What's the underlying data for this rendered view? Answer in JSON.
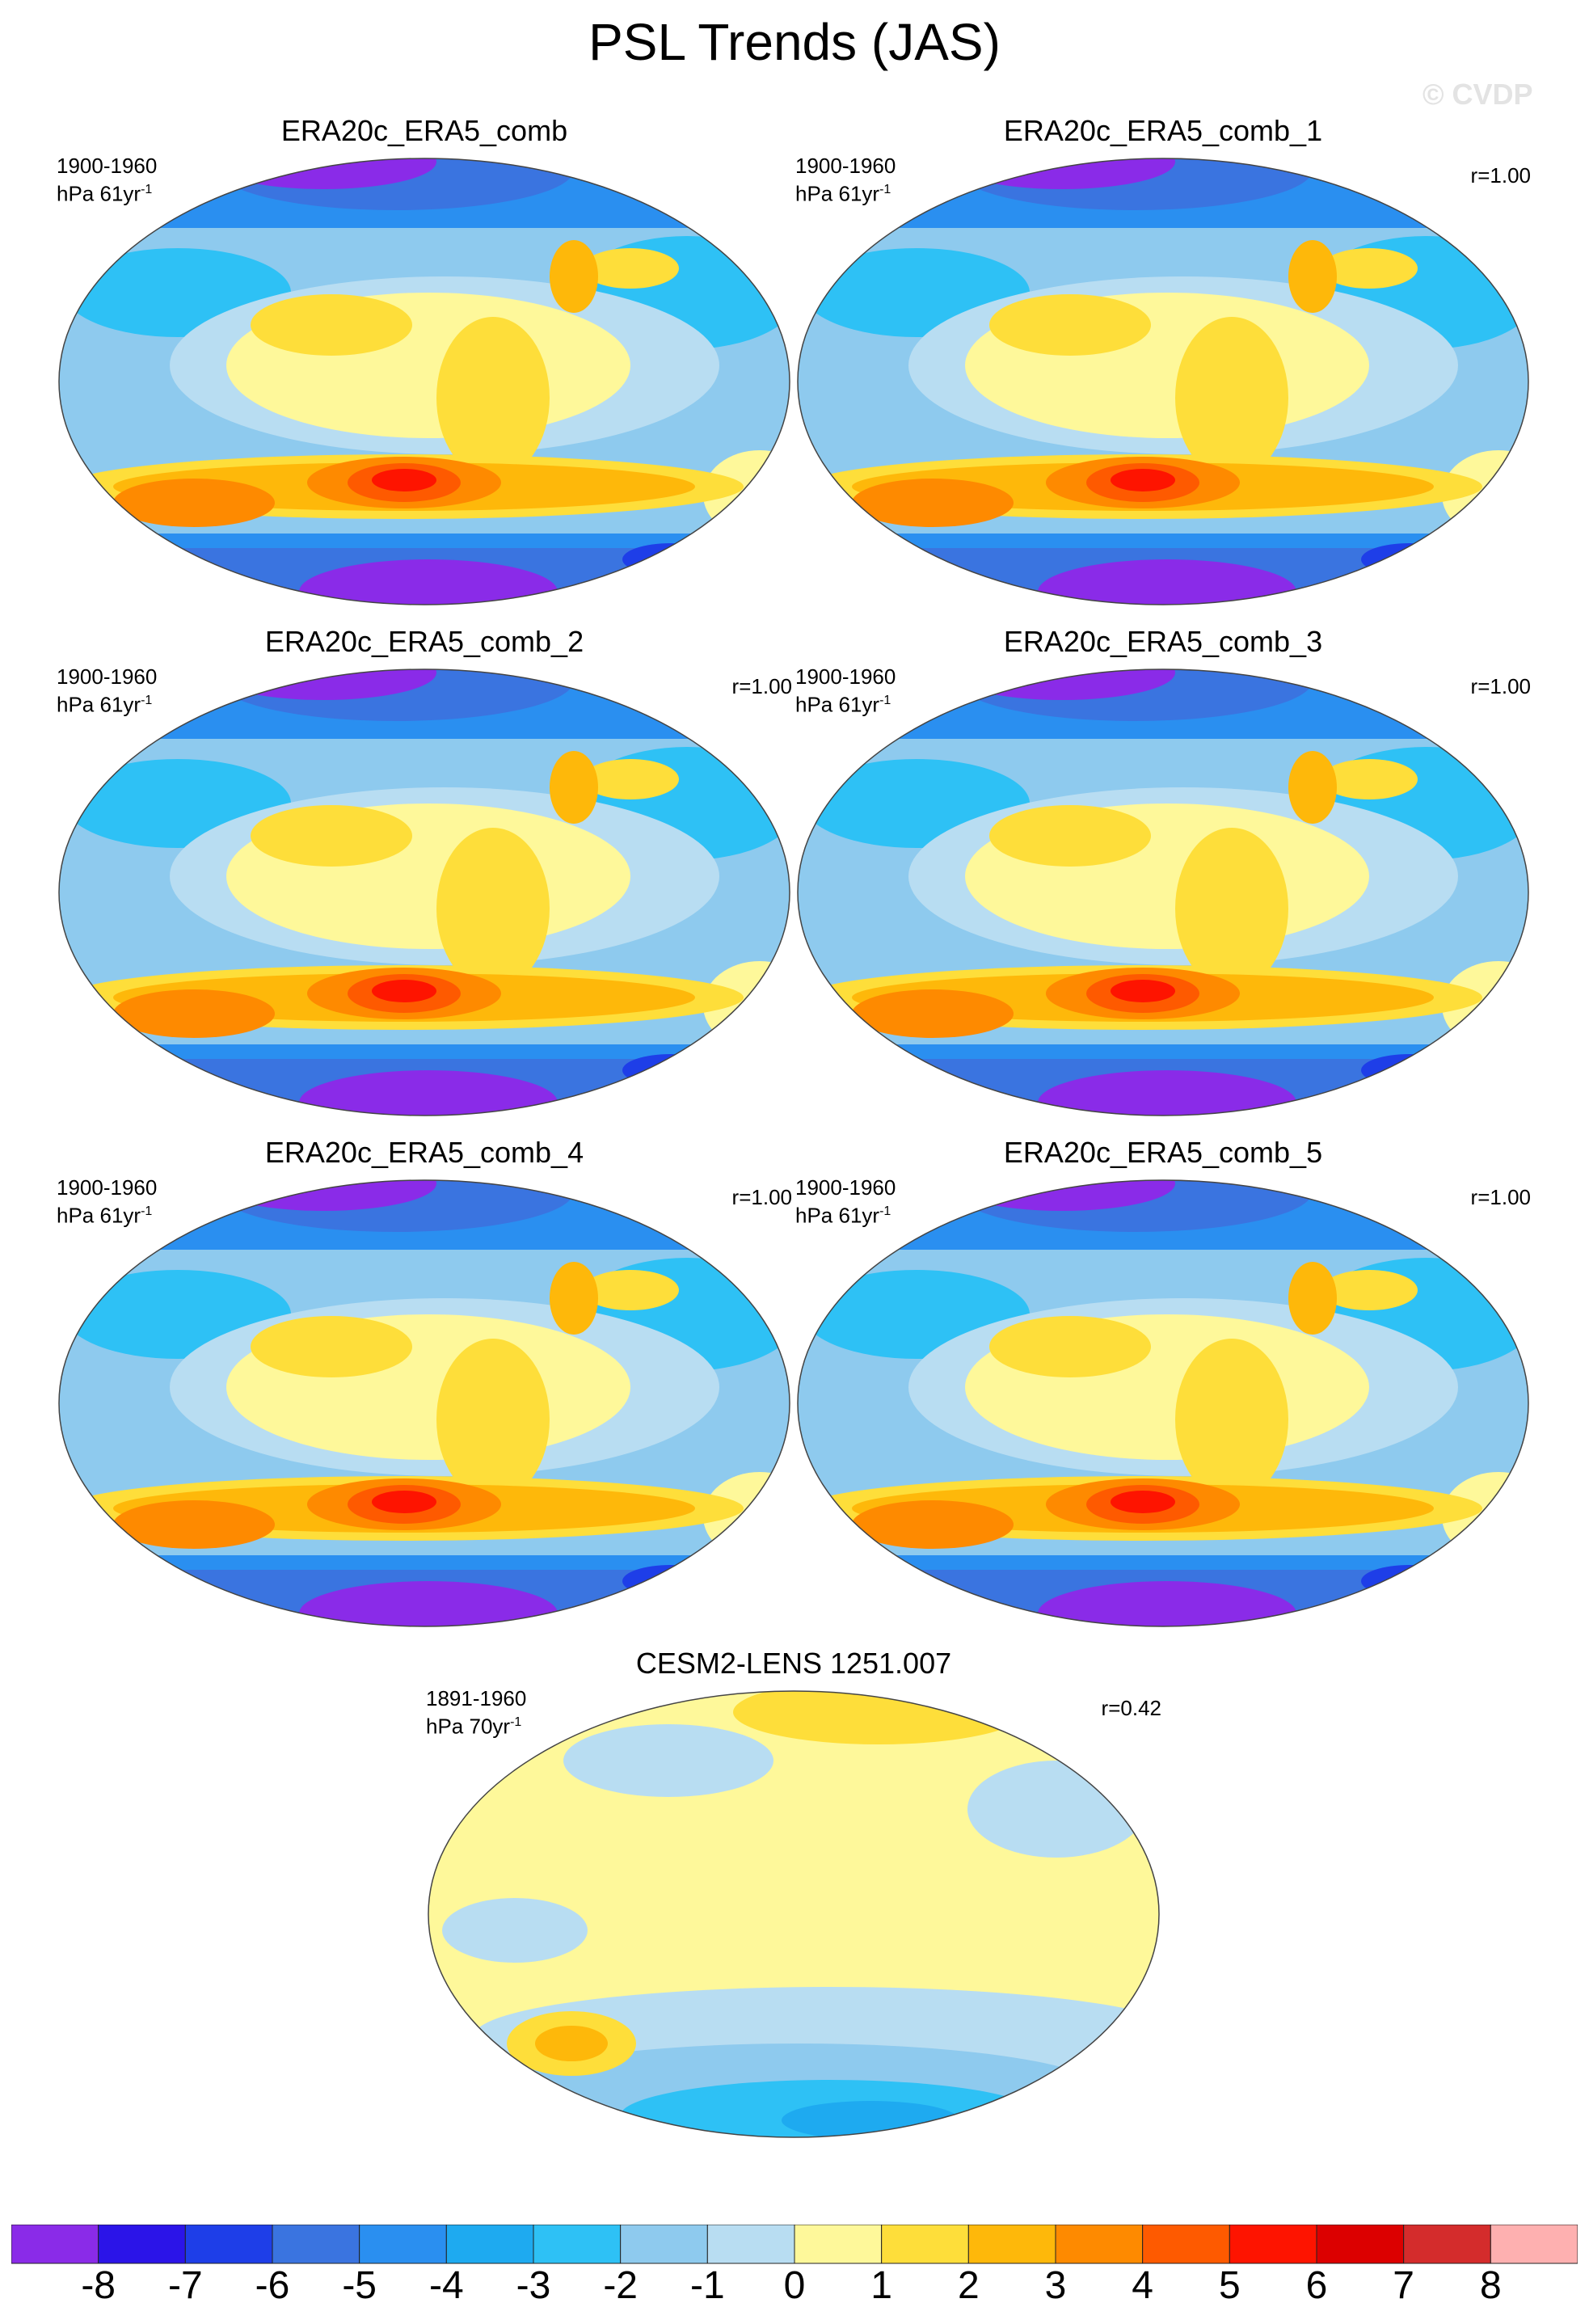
{
  "title": "PSL Trends (JAS)",
  "watermark": "© CVDP",
  "chart_data": {
    "type": "heatmap",
    "variable": "PSL",
    "season": "JAS",
    "projection": "global map",
    "panels": [
      {
        "name": "ERA20c_ERA5_comb",
        "period": "1900-1960",
        "units": "hPa 61yr",
        "units_exp": "-1",
        "r": ""
      },
      {
        "name": "ERA20c_ERA5_comb_1",
        "period": "1900-1960",
        "units": "hPa 61yr",
        "units_exp": "-1",
        "r": "r=1.00"
      },
      {
        "name": "ERA20c_ERA5_comb_2",
        "period": "1900-1960",
        "units": "hPa 61yr",
        "units_exp": "-1",
        "r": "r=1.00"
      },
      {
        "name": "ERA20c_ERA5_comb_3",
        "period": "1900-1960",
        "units": "hPa 61yr",
        "units_exp": "-1",
        "r": "r=1.00"
      },
      {
        "name": "ERA20c_ERA5_comb_4",
        "period": "1900-1960",
        "units": "hPa 61yr",
        "units_exp": "-1",
        "r": "r=1.00"
      },
      {
        "name": "ERA20c_ERA5_comb_5",
        "period": "1900-1960",
        "units": "hPa 61yr",
        "units_exp": "-1",
        "r": "r=1.00"
      },
      {
        "name": "CESM2-LENS 1251.007",
        "period": "1891-1960",
        "units": "hPa 70yr",
        "units_exp": "-1",
        "r": "r=0.42"
      }
    ],
    "colorbar": {
      "levels": [
        "-8",
        "-7",
        "-6",
        "-5",
        "-4",
        "-3",
        "-2",
        "-1",
        "0",
        "1",
        "2",
        "3",
        "4",
        "5",
        "6",
        "7",
        "8"
      ],
      "colors": [
        "#8a2be8",
        "#2b14e8",
        "#1e3ee8",
        "#3a74e0",
        "#2a8ff0",
        "#1eaaf0",
        "#2ec1f5",
        "#8ecaee",
        "#b8ddf2",
        "#fef89a",
        "#fede3a",
        "#feb80a",
        "#fe8a00",
        "#fe5a00",
        "#fe1400",
        "#dc0000",
        "#d42c2c",
        "#feb0b0"
      ]
    }
  }
}
